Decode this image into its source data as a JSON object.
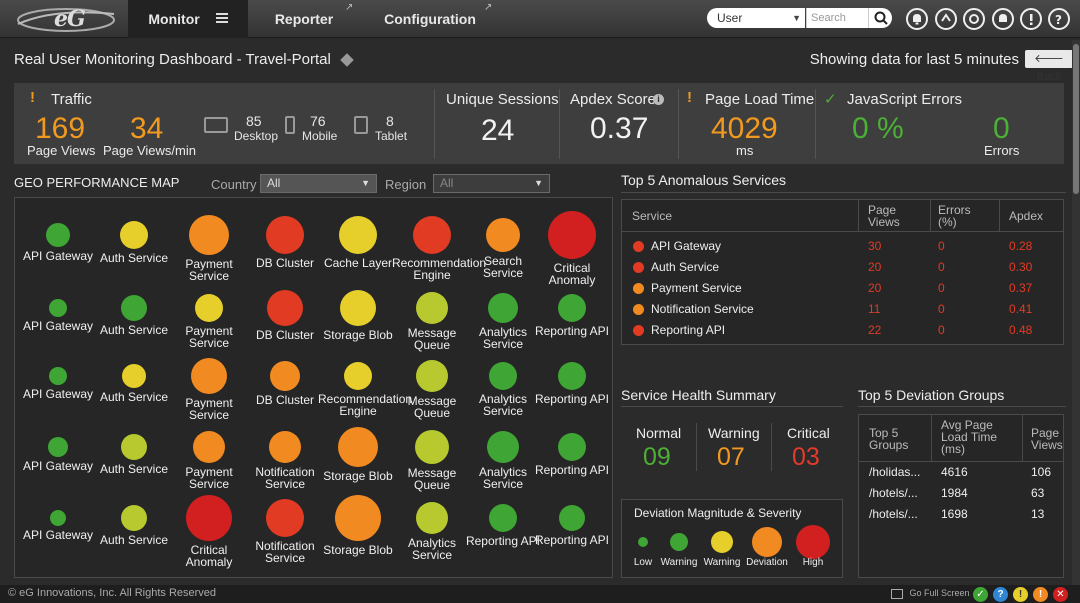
{
  "topbar": {
    "logo_text": "eG",
    "tabs": [
      {
        "label": "Monitor",
        "active": true
      },
      {
        "label": "Reporter"
      },
      {
        "label": "Configuration"
      }
    ],
    "user_select": "User",
    "search_placeholder": "Search",
    "icons": [
      "bell-icon",
      "sync-icon",
      "network-icon",
      "alarm-icon",
      "alert-icon",
      "help-icon",
      "power-icon"
    ]
  },
  "header": {
    "title": "Real User Monitoring Dashboard - Travel-Portal",
    "showing": "Showing data for last 5 minutes",
    "back_label": "Back"
  },
  "stats": {
    "traffic": {
      "label": "Traffic",
      "page_views": "169",
      "page_views_label": "Page Views",
      "page_views_min": "34",
      "page_views_min_label": "Page Views/min",
      "desktop": "85",
      "desktop_label": "Desktop",
      "mobile": "76",
      "mobile_label": "Mobile",
      "tablet": "8",
      "tablet_label": "Tablet"
    },
    "unique_sessions": {
      "label": "Unique Sessions",
      "value": "24"
    },
    "apdex": {
      "label": "Apdex Score",
      "value": "0.37"
    },
    "page_load": {
      "label": "Page Load Time",
      "value": "4029",
      "unit": "ms"
    },
    "js_errors": {
      "label": "JavaScript Errors",
      "percent": "0 %",
      "count": "0",
      "count_label": "Errors"
    }
  },
  "geo": {
    "title": "GEO PERFORMANCE MAP",
    "country_label": "Country",
    "country_value": "All",
    "region_label": "Region",
    "region_value": "All",
    "rows": [
      [
        {
          "name": "API Gateway",
          "status": "normal",
          "size": 24
        },
        {
          "name": "Auth Service",
          "status": "warning-yellow",
          "size": 28
        },
        {
          "name": "Payment Service",
          "status": "deviation",
          "size": 40
        },
        {
          "name": "DB Cluster",
          "status": "critical",
          "size": 38
        },
        {
          "name": "Cache Layer",
          "status": "warning-yellow",
          "size": 38
        },
        {
          "name": "Recommendation Engine",
          "status": "critical",
          "size": 38
        },
        {
          "name": "Search Service",
          "status": "deviation",
          "size": 34
        },
        {
          "name": "Critical Anomaly",
          "status": "high",
          "size": 48
        }
      ],
      [
        {
          "name": "API Gateway",
          "status": "normal",
          "size": 18
        },
        {
          "name": "Auth Service",
          "status": "normal",
          "size": 26
        },
        {
          "name": "Payment Service",
          "status": "warning-yellow",
          "size": 28
        },
        {
          "name": "DB Cluster",
          "status": "critical",
          "size": 36
        },
        {
          "name": "Storage Blob",
          "status": "warning-yellow",
          "size": 36
        },
        {
          "name": "Message Queue",
          "status": "warning-lime",
          "size": 32
        },
        {
          "name": "Analytics Service",
          "status": "normal",
          "size": 30
        },
        {
          "name": "Reporting API",
          "status": "normal",
          "size": 28
        }
      ],
      [
        {
          "name": "API Gateway",
          "status": "normal",
          "size": 18
        },
        {
          "name": "Auth Service",
          "status": "warning-yellow",
          "size": 24
        },
        {
          "name": "Payment Service",
          "status": "deviation",
          "size": 36
        },
        {
          "name": "DB Cluster",
          "status": "deviation",
          "size": 30
        },
        {
          "name": "Recommendation Engine",
          "status": "warning-yellow",
          "size": 28
        },
        {
          "name": "Message Queue",
          "status": "warning-lime",
          "size": 32
        },
        {
          "name": "Analytics Service",
          "status": "normal",
          "size": 28
        },
        {
          "name": "Reporting API",
          "status": "normal",
          "size": 28
        }
      ],
      [
        {
          "name": "API Gateway",
          "status": "normal",
          "size": 20
        },
        {
          "name": "Auth Service",
          "status": "warning-lime",
          "size": 26
        },
        {
          "name": "Payment Service",
          "status": "deviation",
          "size": 32
        },
        {
          "name": "Notification Service",
          "status": "deviation",
          "size": 32
        },
        {
          "name": "Storage Blob",
          "status": "deviation",
          "size": 40
        },
        {
          "name": "Message Queue",
          "status": "warning-lime",
          "size": 34
        },
        {
          "name": "Analytics Service",
          "status": "normal",
          "size": 32
        },
        {
          "name": "Reporting API",
          "status": "normal",
          "size": 28
        }
      ],
      [
        {
          "name": "API Gateway",
          "status": "normal",
          "size": 16
        },
        {
          "name": "Auth Service",
          "status": "warning-lime",
          "size": 26
        },
        {
          "name": "Critical Anomaly",
          "status": "high",
          "size": 46
        },
        {
          "name": "Notification Service",
          "status": "critical",
          "size": 38
        },
        {
          "name": "Storage Blob",
          "status": "deviation",
          "size": 46
        },
        {
          "name": "Analytics Service",
          "status": "warning-lime",
          "size": 32
        },
        {
          "name": "Reporting API",
          "status": "normal",
          "size": 28
        },
        {
          "name": "Reporting API",
          "status": "normal",
          "size": 26
        }
      ]
    ]
  },
  "anomalous": {
    "title": "Top 5 Anomalous Services",
    "headers": [
      "Service",
      "Page Views",
      "Errors (%)",
      "Apdex"
    ],
    "rows": [
      {
        "service": "API Gateway",
        "status": "critical",
        "page_views": "30",
        "errors": "0",
        "apdex": "0.28"
      },
      {
        "service": "Auth Service",
        "status": "critical",
        "page_views": "20",
        "errors": "0",
        "apdex": "0.30"
      },
      {
        "service": "Payment Service",
        "status": "deviation",
        "page_views": "20",
        "errors": "0",
        "apdex": "0.37"
      },
      {
        "service": "Notification Service",
        "status": "deviation",
        "page_views": "11",
        "errors": "0",
        "apdex": "0.41"
      },
      {
        "service": "Reporting API",
        "status": "critical",
        "page_views": "22",
        "errors": "0",
        "apdex": "0.48"
      }
    ]
  },
  "health": {
    "title": "Service Health Summary",
    "normal_label": "Normal",
    "normal_value": "09",
    "warning_label": "Warning",
    "warning_value": "07",
    "critical_label": "Critical",
    "critical_value": "03"
  },
  "legend": {
    "title": "Deviation Magnitude & Severity",
    "items": [
      {
        "label": "Low",
        "status": "normal",
        "size": 10
      },
      {
        "label": "Warning",
        "status": "normal",
        "size": 18
      },
      {
        "label": "Warning",
        "status": "warning-yellow",
        "size": 22
      },
      {
        "label": "Deviation",
        "status": "deviation",
        "size": 30
      },
      {
        "label": "High",
        "status": "high",
        "size": 34
      }
    ]
  },
  "deviation": {
    "title": "Top 5 Deviation Groups",
    "headers": [
      "Top 5 Groups",
      "Avg Page Load Time (ms)",
      "Page Views"
    ],
    "rows": [
      {
        "group": "/holidas...",
        "load": "4616",
        "views": "106"
      },
      {
        "group": "/hotels/...",
        "load": "1984",
        "views": "63"
      },
      {
        "group": "/hotels/...",
        "load": "1698",
        "views": "13"
      }
    ]
  },
  "footer": {
    "copyright": "© eG Innovations, Inc. All Rights Reserved",
    "fullscreen": "Go Full Screen"
  },
  "colors": {
    "normal": "#3fa535",
    "warning-lime": "#b7c92e",
    "warning-yellow": "#e6cf2a",
    "deviation": "#f28a22",
    "critical": "#e23b23",
    "high": "#d1201f",
    "accent-orange": "#f19a1f"
  }
}
